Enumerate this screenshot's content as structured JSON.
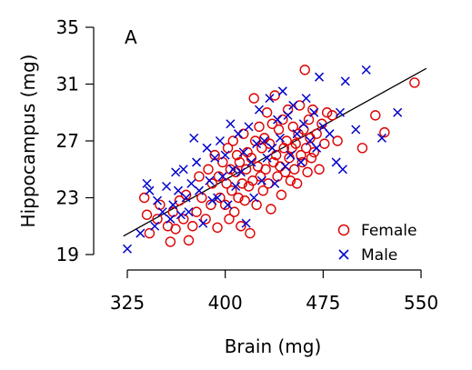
{
  "chart_data": {
    "type": "scatter",
    "panel_label": "A",
    "xlabel": "Brain (mg)",
    "ylabel": "Hippocampus (mg)",
    "xlim": [
      325,
      550
    ],
    "ylim": [
      19,
      35
    ],
    "xticks": [
      325,
      400,
      475,
      550
    ],
    "yticks": [
      19,
      23,
      27,
      31,
      35
    ],
    "legend_position": "bottom-right",
    "regression_line": {
      "x": [
        322,
        554
      ],
      "y": [
        20.3,
        32.1
      ],
      "color": "#000000"
    },
    "series": [
      {
        "name": "Female",
        "marker": "circle",
        "color": "#dd0000",
        "points": [
          [
            338,
            23.0
          ],
          [
            340,
            21.8
          ],
          [
            342,
            20.5
          ],
          [
            348,
            21.5
          ],
          [
            350,
            22.5
          ],
          [
            356,
            21.0
          ],
          [
            358,
            19.9
          ],
          [
            360,
            22.0
          ],
          [
            362,
            20.8
          ],
          [
            365,
            22.8
          ],
          [
            368,
            21.5
          ],
          [
            370,
            23.2
          ],
          [
            372,
            20.0
          ],
          [
            375,
            21.0
          ],
          [
            378,
            22.0
          ],
          [
            380,
            24.5
          ],
          [
            382,
            23.0
          ],
          [
            385,
            21.5
          ],
          [
            387,
            25.0
          ],
          [
            389,
            22.5
          ],
          [
            390,
            24.0
          ],
          [
            392,
            26.0
          ],
          [
            394,
            20.9
          ],
          [
            395,
            24.5
          ],
          [
            396,
            23.0
          ],
          [
            398,
            25.5
          ],
          [
            400,
            22.5
          ],
          [
            401,
            24.0
          ],
          [
            402,
            26.5
          ],
          [
            403,
            21.5
          ],
          [
            404,
            25.0
          ],
          [
            405,
            23.5
          ],
          [
            406,
            27.0
          ],
          [
            407,
            22.0
          ],
          [
            408,
            24.8
          ],
          [
            409,
            26.0
          ],
          [
            410,
            23.0
          ],
          [
            411,
            25.5
          ],
          [
            412,
            21.0
          ],
          [
            413,
            24.0
          ],
          [
            414,
            27.5
          ],
          [
            415,
            22.8
          ],
          [
            416,
            25.0
          ],
          [
            417,
            26.2
          ],
          [
            418,
            23.8
          ],
          [
            419,
            20.5
          ],
          [
            420,
            25.8
          ],
          [
            421,
            24.2
          ],
          [
            422,
            30.0
          ],
          [
            423,
            27.0
          ],
          [
            424,
            22.5
          ],
          [
            425,
            25.2
          ],
          [
            426,
            28.0
          ],
          [
            427,
            24.5
          ],
          [
            428,
            26.5
          ],
          [
            429,
            23.5
          ],
          [
            430,
            27.2
          ],
          [
            431,
            25.0
          ],
          [
            432,
            29.0
          ],
          [
            433,
            24.0
          ],
          [
            434,
            26.8
          ],
          [
            435,
            22.2
          ],
          [
            436,
            28.2
          ],
          [
            437,
            25.5
          ],
          [
            438,
            30.2
          ],
          [
            439,
            26.0
          ],
          [
            440,
            24.5
          ],
          [
            441,
            27.8
          ],
          [
            442,
            25.2
          ],
          [
            443,
            23.2
          ],
          [
            444,
            28.5
          ],
          [
            445,
            26.5
          ],
          [
            446,
            24.8
          ],
          [
            447,
            27.0
          ],
          [
            448,
            29.2
          ],
          [
            449,
            25.8
          ],
          [
            450,
            24.2
          ],
          [
            451,
            26.5
          ],
          [
            452,
            28.0
          ],
          [
            453,
            25.0
          ],
          [
            454,
            26.8
          ],
          [
            455,
            24.0
          ],
          [
            456,
            27.5
          ],
          [
            457,
            29.5
          ],
          [
            458,
            26.0
          ],
          [
            459,
            25.5
          ],
          [
            460,
            27.8
          ],
          [
            461,
            32.0
          ],
          [
            462,
            26.5
          ],
          [
            463,
            24.8
          ],
          [
            464,
            28.5
          ],
          [
            465,
            27.2
          ],
          [
            466,
            25.8
          ],
          [
            467,
            29.2
          ],
          [
            468,
            26.2
          ],
          [
            470,
            27.5
          ],
          [
            472,
            25.0
          ],
          [
            474,
            28.2
          ],
          [
            476,
            26.8
          ],
          [
            478,
            29.0
          ],
          [
            482,
            28.8
          ],
          [
            486,
            27.0
          ],
          [
            505,
            26.5
          ],
          [
            515,
            28.8
          ],
          [
            522,
            27.6
          ],
          [
            545,
            31.1
          ]
        ]
      },
      {
        "name": "Male",
        "marker": "cross",
        "color": "#0000cc",
        "points": [
          [
            325,
            19.4
          ],
          [
            335,
            20.5
          ],
          [
            340,
            24.0
          ],
          [
            342,
            23.5
          ],
          [
            346,
            21.0
          ],
          [
            348,
            22.8
          ],
          [
            352,
            22.0
          ],
          [
            355,
            23.8
          ],
          [
            358,
            21.5
          ],
          [
            360,
            22.5
          ],
          [
            362,
            24.8
          ],
          [
            364,
            23.5
          ],
          [
            366,
            21.8
          ],
          [
            368,
            25.0
          ],
          [
            370,
            23.0
          ],
          [
            372,
            22.0
          ],
          [
            374,
            24.0
          ],
          [
            376,
            27.2
          ],
          [
            378,
            25.5
          ],
          [
            380,
            23.5
          ],
          [
            383,
            21.2
          ],
          [
            386,
            26.5
          ],
          [
            388,
            24.2
          ],
          [
            390,
            22.8
          ],
          [
            392,
            25.8
          ],
          [
            394,
            23.0
          ],
          [
            396,
            27.0
          ],
          [
            398,
            24.5
          ],
          [
            400,
            26.0
          ],
          [
            402,
            22.5
          ],
          [
            404,
            28.2
          ],
          [
            406,
            25.0
          ],
          [
            408,
            23.8
          ],
          [
            410,
            27.5
          ],
          [
            412,
            24.8
          ],
          [
            414,
            26.2
          ],
          [
            416,
            21.2
          ],
          [
            418,
            28.0
          ],
          [
            420,
            25.5
          ],
          [
            422,
            23.0
          ],
          [
            424,
            26.8
          ],
          [
            426,
            29.2
          ],
          [
            428,
            24.2
          ],
          [
            430,
            27.0
          ],
          [
            432,
            25.8
          ],
          [
            434,
            30.0
          ],
          [
            436,
            26.5
          ],
          [
            438,
            24.0
          ],
          [
            440,
            28.5
          ],
          [
            442,
            27.2
          ],
          [
            444,
            30.5
          ],
          [
            446,
            25.2
          ],
          [
            448,
            28.8
          ],
          [
            450,
            26.0
          ],
          [
            452,
            29.5
          ],
          [
            455,
            27.5
          ],
          [
            458,
            25.5
          ],
          [
            460,
            28.2
          ],
          [
            462,
            30.0
          ],
          [
            465,
            27.0
          ],
          [
            468,
            29.0
          ],
          [
            470,
            26.5
          ],
          [
            472,
            31.5
          ],
          [
            475,
            28.0
          ],
          [
            480,
            27.5
          ],
          [
            485,
            25.5
          ],
          [
            488,
            29.0
          ],
          [
            490,
            25.0
          ],
          [
            492,
            31.2
          ],
          [
            500,
            27.8
          ],
          [
            508,
            32.0
          ],
          [
            520,
            27.2
          ],
          [
            532,
            29.0
          ]
        ]
      }
    ]
  }
}
